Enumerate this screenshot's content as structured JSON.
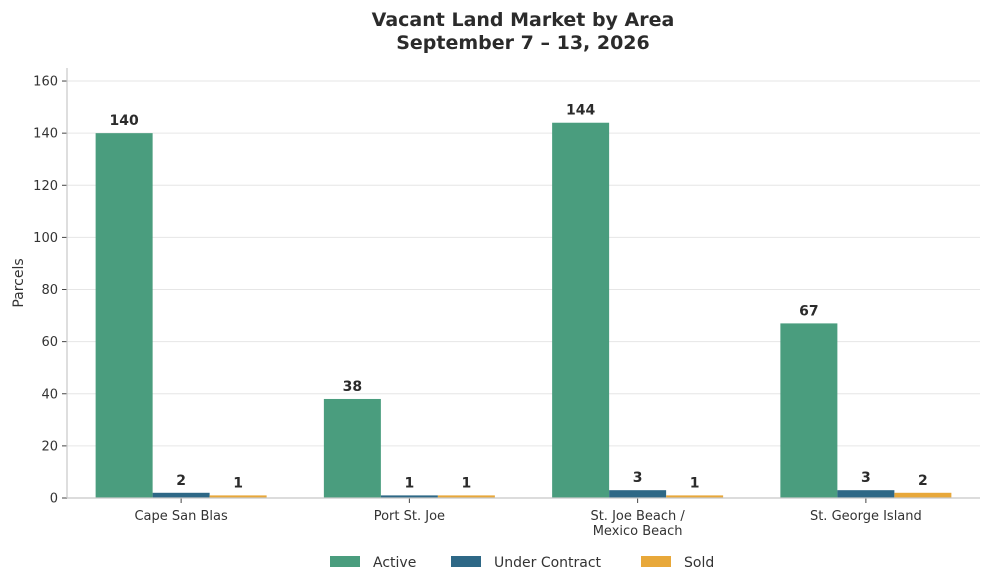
{
  "chart_data": {
    "type": "bar",
    "title": [
      "Vacant Land Market by Area",
      "September 7 – 13, 2026"
    ],
    "ylabel": "Parcels",
    "xlabel": "",
    "ylim": [
      0,
      165
    ],
    "yticks": [
      0,
      20,
      40,
      60,
      80,
      100,
      120,
      140,
      160
    ],
    "grid": true,
    "legend_position": "bottom-center",
    "categories": [
      [
        "Cape San Blas"
      ],
      [
        "Port St. Joe"
      ],
      [
        "St. Joe Beach /",
        "Mexico Beach"
      ],
      [
        "St. George Island"
      ]
    ],
    "series": [
      {
        "name": "Active",
        "color": "#4a9d7e",
        "values": [
          140,
          38,
          144,
          67
        ]
      },
      {
        "name": "Under Contract",
        "color": "#2e6886",
        "values": [
          2,
          1,
          3,
          3
        ]
      },
      {
        "name": "Sold",
        "color": "#e8a83a",
        "values": [
          1,
          1,
          1,
          2
        ]
      }
    ]
  }
}
